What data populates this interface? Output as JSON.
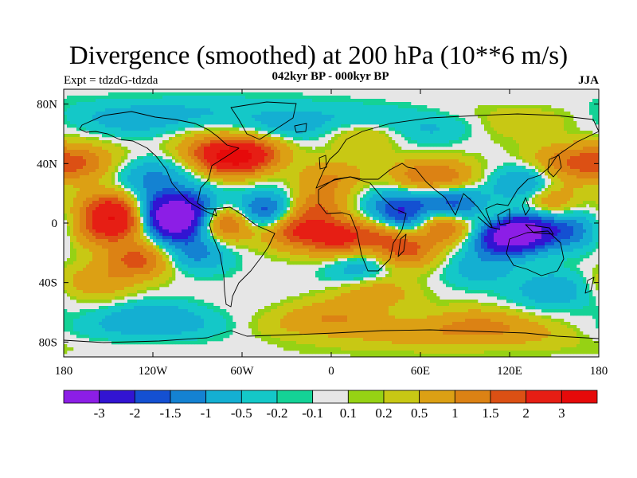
{
  "title": "Divergence (smoothed) at 200 hPa (10**6 m/s)",
  "subtitle": "042kyr BP - 000kyr BP",
  "experiment": "Expt = tdzdG-tdzda",
  "season": "JJA",
  "map": {
    "projection": "cylindrical-equidistant",
    "lon_range": [
      -180,
      180
    ],
    "lat_range": [
      -90,
      90
    ],
    "x_ticks": [
      "180",
      "120W",
      "60W",
      "0",
      "60E",
      "120E",
      "180"
    ],
    "y_ticks": [
      "80N",
      "40N",
      "0",
      "40S",
      "80S"
    ],
    "background_color": "#e6e6e6",
    "coastline_color": "#000000"
  },
  "colorbar": {
    "levels": [
      "-3",
      "-2",
      "-1.5",
      "-1",
      "-0.5",
      "-0.2",
      "-0.1",
      "0.1",
      "0.2",
      "0.5",
      "1",
      "1.5",
      "2",
      "3"
    ],
    "colors": [
      "#8c1ee6",
      "#3214d2",
      "#1450d2",
      "#1482d2",
      "#14afd2",
      "#14c8c8",
      "#14d296",
      "#e6e6e6",
      "#96d214",
      "#c8c814",
      "#dca014",
      "#dc8214",
      "#dc5014",
      "#e61e14",
      "#e60a0a"
    ]
  },
  "field": [
    {
      "lon": -150,
      "lat": 10,
      "value": 1.8
    },
    {
      "lon": -135,
      "lat": 2,
      "value": 1.6
    },
    {
      "lon": -155,
      "lat": -5,
      "value": 1.4
    },
    {
      "lon": -130,
      "lat": -25,
      "value": 1.7
    },
    {
      "lon": -105,
      "lat": 0,
      "value": -3.2
    },
    {
      "lon": -115,
      "lat": 8,
      "value": -1.8
    },
    {
      "lon": -70,
      "lat": 0,
      "value": 1.9
    },
    {
      "lon": -45,
      "lat": 8,
      "value": -2.0
    },
    {
      "lon": -95,
      "lat": 12,
      "value": -1.5
    },
    {
      "lon": -10,
      "lat": 10,
      "value": 1.3
    },
    {
      "lon": 5,
      "lat": -10,
      "value": 2.2
    },
    {
      "lon": -25,
      "lat": -5,
      "value": 1.9
    },
    {
      "lon": -70,
      "lat": 45,
      "value": 2.0
    },
    {
      "lon": -60,
      "lat": 45,
      "value": 1.8
    },
    {
      "lon": 20,
      "lat": 60,
      "value": 0.8
    },
    {
      "lon": 40,
      "lat": 10,
      "value": -1.2
    },
    {
      "lon": 48,
      "lat": 0,
      "value": -2.2
    },
    {
      "lon": 38,
      "lat": -5,
      "value": 2.0
    },
    {
      "lon": 50,
      "lat": -18,
      "value": 1.6
    },
    {
      "lon": 60,
      "lat": 30,
      "value": 1.2
    },
    {
      "lon": 80,
      "lat": 30,
      "value": 0.9
    },
    {
      "lon": 65,
      "lat": 15,
      "value": -1.0
    },
    {
      "lon": 75,
      "lat": 0,
      "value": 2.3
    },
    {
      "lon": 85,
      "lat": 10,
      "value": -2.1
    },
    {
      "lon": 110,
      "lat": 0,
      "value": 1.5
    },
    {
      "lon": 115,
      "lat": -8,
      "value": -3.3
    },
    {
      "lon": 130,
      "lat": -5,
      "value": -3.0
    },
    {
      "lon": 130,
      "lat": 25,
      "value": -1.3
    },
    {
      "lon": 145,
      "lat": 15,
      "value": 1.2
    },
    {
      "lon": 160,
      "lat": -5,
      "value": -1.4
    },
    {
      "lon": -160,
      "lat": -40,
      "value": 0.8
    },
    {
      "lon": -90,
      "lat": -20,
      "value": -1.2
    },
    {
      "lon": 0,
      "lat": 30,
      "value": 1.0
    },
    {
      "lon": 20,
      "lat": -30,
      "value": -1.0
    },
    {
      "lon": 100,
      "lat": -30,
      "value": -0.8
    },
    {
      "lon": 160,
      "lat": 40,
      "value": 1.3
    },
    {
      "lon": -170,
      "lat": 40,
      "value": 1.4
    },
    {
      "lon": -120,
      "lat": 30,
      "value": -1.1
    },
    {
      "lon": -20,
      "lat": 65,
      "value": -1.0
    },
    {
      "lon": 60,
      "lat": 65,
      "value": -0.8
    },
    {
      "lon": 120,
      "lat": 70,
      "value": 0.5
    },
    {
      "lon": -130,
      "lat": 70,
      "value": -0.8
    },
    {
      "lon": 0,
      "lat": -65,
      "value": 1.0
    },
    {
      "lon": 100,
      "lat": -70,
      "value": 1.2
    },
    {
      "lon": -120,
      "lat": -65,
      "value": -1.0
    },
    {
      "lon": 30,
      "lat": -45,
      "value": 0.9
    },
    {
      "lon": 150,
      "lat": -45,
      "value": -0.9
    }
  ]
}
